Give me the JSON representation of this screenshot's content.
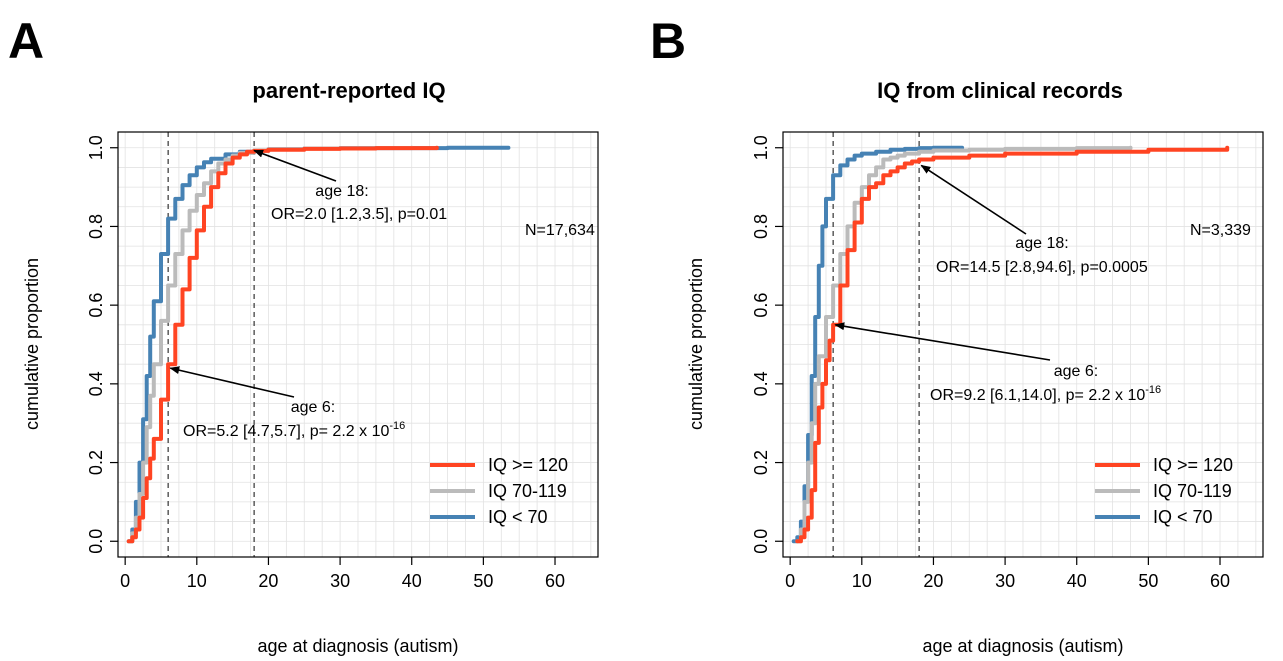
{
  "chart_data": [
    {
      "type": "line",
      "panel": "A",
      "title": "parent-reported IQ",
      "xlabel": "age at diagnosis (autism)",
      "ylabel": "cumulative proportion",
      "xlim": [
        -1,
        66
      ],
      "ylim": [
        -0.04,
        1.04
      ],
      "xticks": [
        "0",
        "10",
        "20",
        "30",
        "40",
        "50",
        "60"
      ],
      "yticks": [
        "0.0",
        "0.2",
        "0.4",
        "0.6",
        "0.8",
        "1.0"
      ],
      "grid": true,
      "vlines": [
        6,
        18
      ],
      "n_label": "N=17,634",
      "legend_position": "bottom-right",
      "series": [
        {
          "name": "IQ >= 120",
          "color": "#FF4422",
          "x": [
            0.5,
            1,
            1.5,
            2,
            2.5,
            3,
            3.5,
            4,
            5,
            6,
            7,
            8,
            9,
            10,
            11,
            12,
            13,
            14,
            15,
            16,
            17,
            18,
            20,
            25,
            30,
            35,
            40,
            43.5
          ],
          "y": [
            0.0,
            0.01,
            0.03,
            0.06,
            0.11,
            0.16,
            0.21,
            0.26,
            0.36,
            0.45,
            0.55,
            0.64,
            0.72,
            0.79,
            0.85,
            0.9,
            0.935,
            0.96,
            0.975,
            0.983,
            0.99,
            0.992,
            0.995,
            0.997,
            0.998,
            0.999,
            0.999,
            1.0
          ]
        },
        {
          "name": "IQ 70-119",
          "color": "#BBBBBB",
          "x": [
            0.5,
            1,
            1.5,
            2,
            2.5,
            3,
            3.5,
            4,
            5,
            6,
            7,
            8,
            9,
            10,
            11,
            12,
            13,
            14,
            15,
            16,
            18,
            20,
            25,
            30,
            35,
            40
          ],
          "y": [
            0.0,
            0.02,
            0.06,
            0.12,
            0.2,
            0.29,
            0.37,
            0.45,
            0.56,
            0.65,
            0.73,
            0.79,
            0.84,
            0.88,
            0.91,
            0.94,
            0.96,
            0.97,
            0.98,
            0.987,
            0.993,
            0.996,
            0.998,
            0.999,
            0.999,
            1.0
          ]
        },
        {
          "name": "IQ < 70",
          "color": "#4682B4",
          "x": [
            0.5,
            1,
            1.5,
            2,
            2.5,
            3,
            3.5,
            4,
            5,
            6,
            7,
            8,
            9,
            10,
            11,
            12,
            14,
            16,
            18,
            20,
            25,
            30,
            40,
            45,
            53.5
          ],
          "y": [
            0.0,
            0.03,
            0.1,
            0.2,
            0.31,
            0.42,
            0.52,
            0.61,
            0.73,
            0.82,
            0.87,
            0.905,
            0.93,
            0.95,
            0.963,
            0.972,
            0.983,
            0.99,
            0.993,
            0.996,
            0.998,
            0.999,
            0.999,
            1.0,
            1.0
          ]
        }
      ],
      "annotations": [
        {
          "line1": "age 18:",
          "line2": "OR=2.0 [1.2,3.5], p=0.01",
          "sup": "",
          "target": [
            18,
            0.993
          ]
        },
        {
          "line1": "age 6:",
          "line2": "OR=5.2 [4.7,5.7], p= 2.2 x 10",
          "sup": "-16",
          "target": [
            6.3,
            0.44
          ]
        }
      ]
    },
    {
      "type": "line",
      "panel": "B",
      "title": "IQ from clinical records",
      "xlabel": "age at diagnosis (autism)",
      "ylabel": "cumulative proportion",
      "xlim": [
        -1,
        66
      ],
      "ylim": [
        -0.04,
        1.04
      ],
      "xticks": [
        "0",
        "10",
        "20",
        "30",
        "40",
        "50",
        "60"
      ],
      "yticks": [
        "0.0",
        "0.2",
        "0.4",
        "0.6",
        "0.8",
        "1.0"
      ],
      "grid": true,
      "vlines": [
        6,
        18
      ],
      "n_label": "N=3,339",
      "legend_position": "bottom-right",
      "series": [
        {
          "name": "IQ >= 120",
          "color": "#FF4422",
          "x": [
            1,
            1.5,
            2,
            2.5,
            3,
            3.5,
            4,
            4.5,
            5,
            5.5,
            6,
            7,
            8,
            9,
            10,
            11,
            12,
            13,
            14,
            15,
            16,
            17,
            18,
            20,
            25,
            30,
            40,
            50,
            61
          ],
          "y": [
            0.0,
            0.01,
            0.03,
            0.06,
            0.13,
            0.25,
            0.34,
            0.4,
            0.46,
            0.51,
            0.55,
            0.65,
            0.74,
            0.81,
            0.87,
            0.9,
            0.91,
            0.93,
            0.94,
            0.95,
            0.96,
            0.965,
            0.97,
            0.975,
            0.98,
            0.985,
            0.99,
            0.995,
            1.0
          ]
        },
        {
          "name": "IQ 70-119",
          "color": "#BBBBBB",
          "x": [
            1,
            1.5,
            2,
            2.5,
            3,
            3.5,
            4,
            5,
            6,
            7,
            8,
            9,
            10,
            11,
            12,
            13,
            14,
            15,
            16,
            18,
            20,
            25,
            30,
            40,
            47.5
          ],
          "y": [
            0.0,
            0.03,
            0.1,
            0.2,
            0.3,
            0.4,
            0.47,
            0.57,
            0.65,
            0.73,
            0.8,
            0.86,
            0.9,
            0.93,
            0.95,
            0.97,
            0.975,
            0.98,
            0.985,
            0.99,
            0.993,
            0.995,
            0.997,
            0.999,
            1.0
          ]
        },
        {
          "name": "IQ < 70",
          "color": "#4682B4",
          "x": [
            0.5,
            1,
            1.5,
            2,
            2.5,
            3,
            3.5,
            4,
            4.5,
            5,
            6,
            7,
            8,
            9,
            10,
            12,
            14,
            16,
            18,
            20,
            24
          ],
          "y": [
            0.0,
            0.01,
            0.05,
            0.14,
            0.27,
            0.42,
            0.57,
            0.7,
            0.8,
            0.87,
            0.93,
            0.955,
            0.97,
            0.98,
            0.985,
            0.99,
            0.995,
            0.997,
            0.999,
            1.0,
            1.0
          ]
        }
      ],
      "annotations": [
        {
          "line1": "age 18:",
          "line2": "OR=14.5 [2.8,94.6], p=0.0005",
          "sup": "",
          "target": [
            18.3,
            0.955
          ]
        },
        {
          "line1": "age 6:",
          "line2": "OR=9.2 [6.1,14.0], p= 2.2 x 10",
          "sup": "-16",
          "target": [
            6.3,
            0.55
          ]
        }
      ]
    }
  ]
}
